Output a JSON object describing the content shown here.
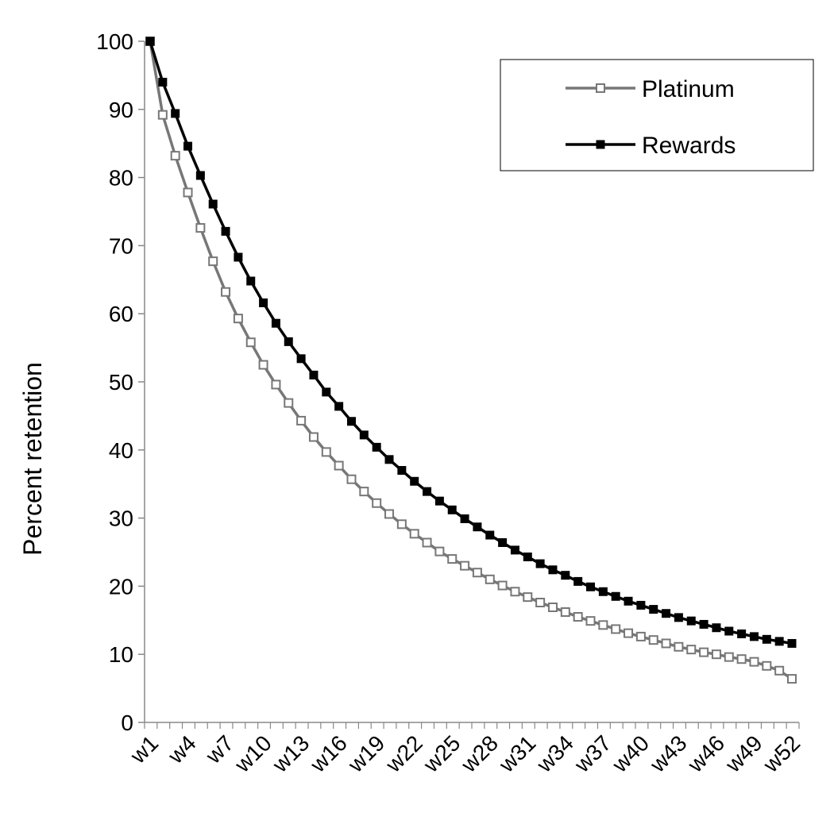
{
  "chart_data": {
    "type": "line",
    "title": "",
    "xlabel": "",
    "ylabel": "Percent retention",
    "ylim": [
      0,
      100
    ],
    "yticks": [
      0,
      10,
      20,
      30,
      40,
      50,
      60,
      70,
      80,
      90,
      100
    ],
    "categories": [
      "w1",
      "w2",
      "w3",
      "w4",
      "w5",
      "w6",
      "w7",
      "w8",
      "w9",
      "w10",
      "w11",
      "w12",
      "w13",
      "w14",
      "w15",
      "w16",
      "w17",
      "w18",
      "w19",
      "w20",
      "w21",
      "w22",
      "w23",
      "w24",
      "w25",
      "w26",
      "w27",
      "w28",
      "w29",
      "w30",
      "w31",
      "w32",
      "w33",
      "w34",
      "w35",
      "w36",
      "w37",
      "w38",
      "w39",
      "w40",
      "w41",
      "w42",
      "w43",
      "w44",
      "w45",
      "w46",
      "w47",
      "w48",
      "w49",
      "w50",
      "w51",
      "w52"
    ],
    "xtick_labels": [
      "w1",
      "w4",
      "w7",
      "w10",
      "w13",
      "w16",
      "w19",
      "w22",
      "w25",
      "w28",
      "w31",
      "w34",
      "w37",
      "w40",
      "w43",
      "w46",
      "w49",
      "w52"
    ],
    "grid": false,
    "legend": "top-right",
    "series": [
      {
        "name": "Platinum",
        "color": "#777777",
        "marker": "hollow-square",
        "values": [
          100,
          89.2,
          83.2,
          77.8,
          72.6,
          67.7,
          63.2,
          59.3,
          55.8,
          52.5,
          49.6,
          46.9,
          44.3,
          41.9,
          39.7,
          37.7,
          35.7,
          33.9,
          32.2,
          30.6,
          29.1,
          27.7,
          26.4,
          25.1,
          24.0,
          23.0,
          22.0,
          21.0,
          20.1,
          19.2,
          18.4,
          17.6,
          16.9,
          16.2,
          15.5,
          14.9,
          14.3,
          13.7,
          13.1,
          12.6,
          12.1,
          11.6,
          11.1,
          10.7,
          10.3,
          10.0,
          9.6,
          9.3,
          8.9,
          8.3,
          7.6,
          6.4
        ]
      },
      {
        "name": "Rewards",
        "color": "#000000",
        "marker": "filled-square",
        "values": [
          100,
          94.0,
          89.4,
          84.6,
          80.3,
          76.1,
          72.1,
          68.3,
          64.8,
          61.6,
          58.6,
          55.9,
          53.4,
          51.0,
          48.5,
          46.4,
          44.2,
          42.2,
          40.4,
          38.6,
          37.0,
          35.4,
          33.9,
          32.5,
          31.2,
          29.9,
          28.7,
          27.5,
          26.4,
          25.3,
          24.3,
          23.3,
          22.4,
          21.6,
          20.7,
          19.9,
          19.2,
          18.5,
          17.8,
          17.2,
          16.6,
          16.0,
          15.4,
          14.9,
          14.4,
          13.9,
          13.4,
          13.0,
          12.6,
          12.2,
          11.9,
          11.6
        ]
      }
    ]
  }
}
